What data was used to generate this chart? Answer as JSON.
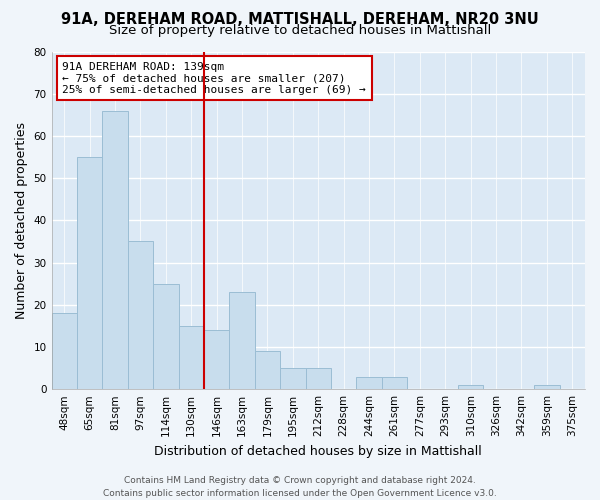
{
  "title": "91A, DEREHAM ROAD, MATTISHALL, DEREHAM, NR20 3NU",
  "subtitle": "Size of property relative to detached houses in Mattishall",
  "xlabel": "Distribution of detached houses by size in Mattishall",
  "ylabel": "Number of detached properties",
  "categories": [
    "48sqm",
    "65sqm",
    "81sqm",
    "97sqm",
    "114sqm",
    "130sqm",
    "146sqm",
    "163sqm",
    "179sqm",
    "195sqm",
    "212sqm",
    "228sqm",
    "244sqm",
    "261sqm",
    "277sqm",
    "293sqm",
    "310sqm",
    "326sqm",
    "342sqm",
    "359sqm",
    "375sqm"
  ],
  "values": [
    18,
    55,
    66,
    35,
    25,
    15,
    14,
    23,
    9,
    5,
    5,
    0,
    3,
    3,
    0,
    0,
    1,
    0,
    0,
    1,
    0
  ],
  "bar_color": "#c8dded",
  "bar_edge_color": "#9bbdd4",
  "vline_x": 5.5,
  "vline_color": "#cc0000",
  "annotation_title": "91A DEREHAM ROAD: 139sqm",
  "annotation_line1": "← 75% of detached houses are smaller (207)",
  "annotation_line2": "25% of semi-detached houses are larger (69) →",
  "annotation_box_color": "#ffffff",
  "annotation_box_edge": "#cc0000",
  "ylim": [
    0,
    80
  ],
  "yticks": [
    0,
    10,
    20,
    30,
    40,
    50,
    60,
    70,
    80
  ],
  "footer_line1": "Contains HM Land Registry data © Crown copyright and database right 2024.",
  "footer_line2": "Contains public sector information licensed under the Open Government Licence v3.0.",
  "plot_bg_color": "#dce9f5",
  "fig_bg_color": "#f0f5fa",
  "grid_color": "#ffffff",
  "title_fontsize": 10.5,
  "subtitle_fontsize": 9.5,
  "axis_label_fontsize": 9,
  "tick_fontsize": 7.5,
  "annotation_fontsize": 8,
  "footer_fontsize": 6.5
}
